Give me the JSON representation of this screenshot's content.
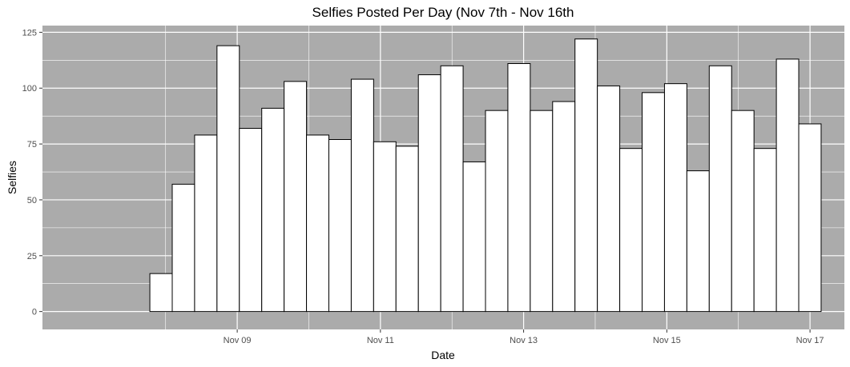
{
  "chart_data": {
    "type": "bar",
    "title": "Selfies Posted Per Day (Nov 7th - Nov 16th",
    "xlabel": "Date",
    "ylabel": "Selfies",
    "ylim": [
      -8,
      128
    ],
    "y_ticks": [
      0,
      25,
      50,
      75,
      100,
      125
    ],
    "x_ticks": [
      {
        "label": "Nov 09",
        "value": 2
      },
      {
        "label": "Nov 11",
        "value": 4
      },
      {
        "label": "Nov 13",
        "value": 6
      },
      {
        "label": "Nov 15",
        "value": 8
      },
      {
        "label": "Nov 17",
        "value": 10
      }
    ],
    "x_range": [
      -0.72,
      10.48
    ],
    "bin_width": 0.3125,
    "bin_start": 0.78,
    "values": [
      17,
      57,
      79,
      119,
      82,
      91,
      103,
      79,
      77,
      104,
      76,
      74,
      106,
      110,
      67,
      90,
      111,
      90,
      94,
      122,
      101,
      73,
      98,
      102,
      63,
      110,
      90,
      73,
      113,
      84
    ],
    "panel_color": "#ababab",
    "grid_color": "#ffffff",
    "bar_fill": "#ffffff",
    "bar_stroke": "#000000",
    "grid": true,
    "legend": "none"
  }
}
